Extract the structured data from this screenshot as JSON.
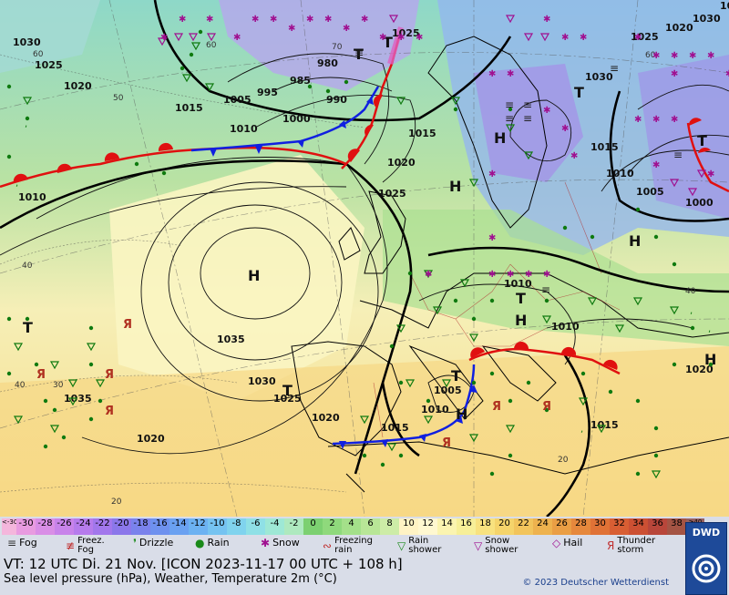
{
  "map": {
    "lows": [
      "T",
      "T",
      "T",
      "T",
      "T",
      "T",
      "T",
      "T"
    ],
    "highs": [
      "H",
      "H",
      "H",
      "H",
      "H",
      "H",
      "H"
    ],
    "pressure_labels": [
      "1030",
      "1025",
      "1020",
      "1015",
      "1010",
      "1005",
      "995",
      "985",
      "980",
      "990",
      "1000",
      "1010",
      "1015",
      "1020",
      "1025",
      "1035",
      "1030",
      "1025",
      "1020",
      "1015",
      "1020",
      "1005",
      "1010",
      "1015",
      "1010",
      "1010",
      "1020",
      "1035",
      "1030",
      "1025",
      "1020",
      "1015",
      "1005",
      "1010",
      "1000",
      "1030",
      "1025",
      "1035"
    ],
    "isotherm_labels": [
      "60",
      "50",
      "60",
      "70",
      "40",
      "40",
      "30",
      "20",
      "20",
      "40",
      "60"
    ]
  },
  "legend": {
    "scale_values": [
      "<-30",
      "-30",
      "-28",
      "-26",
      "-24",
      "-22",
      "-20",
      "-18",
      "-16",
      "-14",
      "-12",
      "-10",
      "-8",
      "-6",
      "-4",
      "-2",
      "0",
      "2",
      "4",
      "6",
      "8",
      "10",
      "12",
      "14",
      "16",
      "18",
      "20",
      "22",
      "24",
      "26",
      "28",
      "30",
      "32",
      "34",
      "36",
      "38",
      "≥40 °C"
    ],
    "scale_colors": [
      "#f4b6dc",
      "#e89be0",
      "#d98ee6",
      "#c883ea",
      "#b67bec",
      "#a277ec",
      "#8b77ea",
      "#7a82ec",
      "#6e91ef",
      "#6aa1f1",
      "#6cb2f2",
      "#75c3f1",
      "#80d3ee",
      "#8fe0e6",
      "#9ee8d5",
      "#aee9bf",
      "#7cd071",
      "#8fd97c",
      "#a4e08a",
      "#b8e697",
      "#cdeca7",
      "#fff3c4",
      "#fff8d0",
      "#fbf4b0",
      "#f7ef98",
      "#f8e27f",
      "#f5d46b",
      "#f2c45c",
      "#eeb24e",
      "#ea9e44",
      "#e6883c",
      "#e07236",
      "#d85e33",
      "#cc5033",
      "#b8463a",
      "#a45444",
      "#956060"
    ],
    "items": [
      {
        "icon": "fog-icon",
        "glyph": "≡",
        "label": "Fog"
      },
      {
        "icon": "freezing-fog-icon",
        "glyph": "≢",
        "label": "Freez. Fog"
      },
      {
        "icon": "drizzle-icon",
        "glyph": "❜",
        "label": "Drizzle"
      },
      {
        "icon": "rain-icon",
        "glyph": "●",
        "label": "Rain"
      },
      {
        "icon": "snow-icon",
        "glyph": "✱",
        "label": "Snow"
      },
      {
        "icon": "freezing-rain-icon",
        "glyph": "∾",
        "label": "Freezing rain"
      },
      {
        "icon": "rain-shower-icon",
        "glyph": "▽",
        "label": "Rain shower"
      },
      {
        "icon": "snow-shower-icon",
        "glyph": "▽",
        "label": "Snow shower"
      },
      {
        "icon": "hail-icon",
        "glyph": "◇",
        "label": "Hail"
      },
      {
        "icon": "thunderstorm-icon",
        "glyph": "Я",
        "label": "Thunder storm"
      }
    ],
    "vt_text": "VT: 12 UTC Di.  21 Nov. [ICON 2023-11-17  00 UTC + 108 h]",
    "subtitle": "Sea level pressure (hPa), Weather, Temperature 2m (°C)",
    "copyright": "© 2023 Deutscher Wetterdienst",
    "logo_text": "DWD"
  }
}
